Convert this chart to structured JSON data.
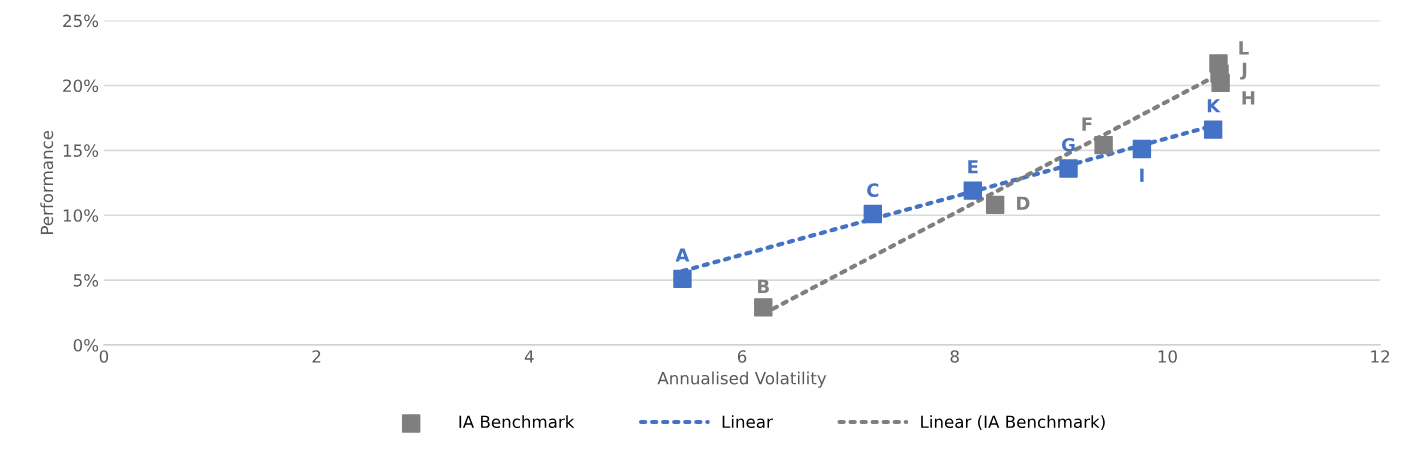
{
  "chart_data": {
    "type": "scatter",
    "xlabel": "Annualised Volatility",
    "ylabel": "Performance",
    "xlim": [
      0,
      12
    ],
    "xticks": [
      0,
      2,
      4,
      6,
      8,
      10,
      12
    ],
    "ylim": [
      0,
      25
    ],
    "yticks": [
      {
        "value": 0,
        "label": "0%"
      },
      {
        "value": 5,
        "label": "5%"
      },
      {
        "value": 10,
        "label": "10%"
      },
      {
        "value": 15,
        "label": "15%"
      },
      {
        "value": 20,
        "label": "20%"
      },
      {
        "value": 25,
        "label": "25%"
      }
    ],
    "grid": "y",
    "legend": "bottom",
    "marker": "square",
    "series": [
      {
        "color": "#4472c4",
        "x": [
          5.44,
          7.23,
          8.17,
          9.07,
          9.76,
          10.43
        ],
        "values": [
          5.1,
          10.1,
          11.9,
          13.6,
          15.1,
          16.6
        ],
        "value_labels": [
          "A",
          "C",
          "E",
          "G",
          "I",
          "K"
        ]
      },
      {
        "name": "IA Benchmark",
        "color": "#7f7f7f",
        "x": [
          6.2,
          8.38,
          9.4,
          10.5,
          10.49,
          10.48
        ],
        "values": [
          2.9,
          10.8,
          15.4,
          20.2,
          20.9,
          21.7
        ],
        "value_labels": [
          "B",
          "D",
          "F",
          "H",
          "J",
          "L"
        ]
      },
      {
        "name": "Linear",
        "type": "line",
        "color": "#4472c4",
        "marker": "none",
        "line_style": "dotted",
        "x": [
          5.44,
          10.43
        ],
        "values": [
          5.7,
          16.9
        ]
      },
      {
        "name": "Linear (IA Benchmark)",
        "type": "line",
        "color": "#7f7f7f",
        "marker": "none",
        "line_style": "dotted",
        "x": [
          6.2,
          10.47
        ],
        "values": [
          2.4,
          20.8
        ]
      }
    ]
  }
}
